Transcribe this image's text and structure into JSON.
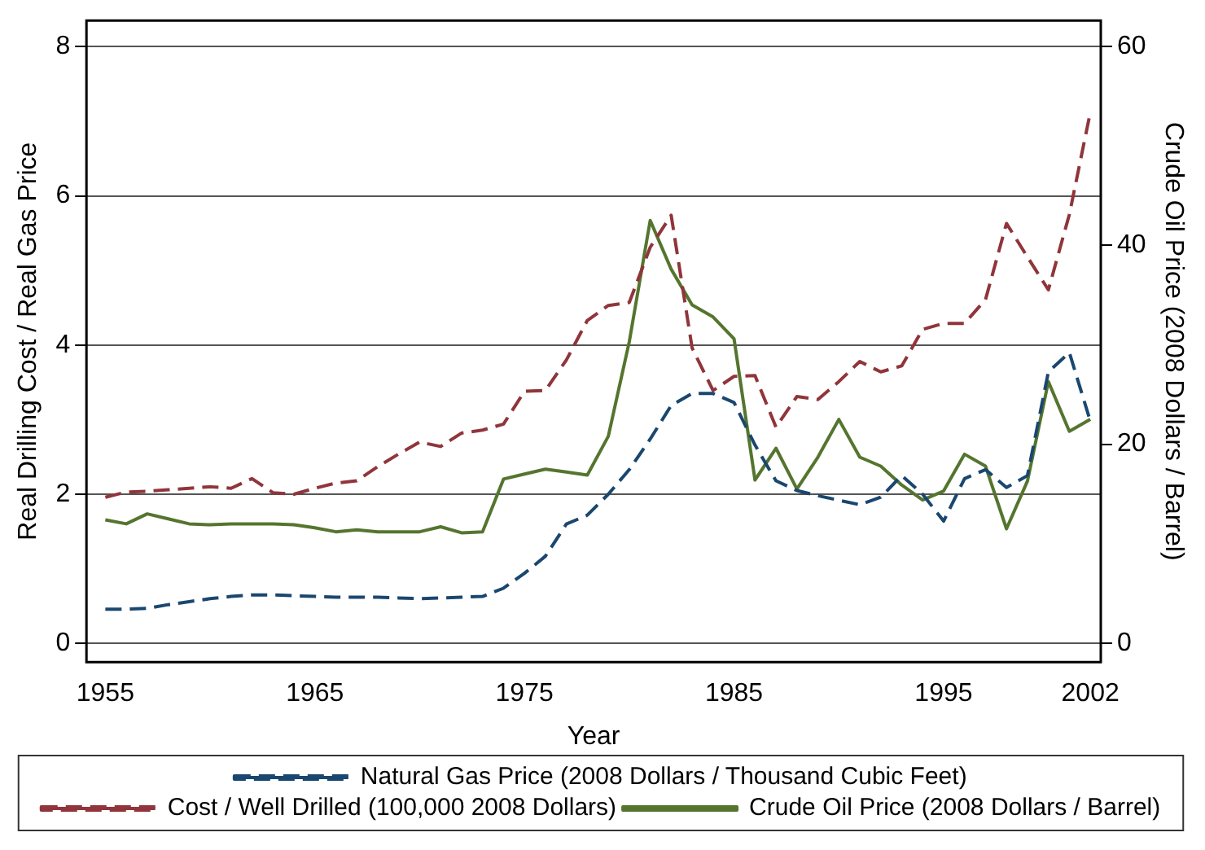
{
  "chart_data": {
    "type": "line",
    "xlabel": "Year",
    "ylabel": "Real Drilling Cost / Real Gas Price",
    "y2label": "Crude Oil Price (2008 Dollars / Barrel)",
    "x": [
      1955,
      1956,
      1957,
      1958,
      1959,
      1960,
      1961,
      1962,
      1963,
      1964,
      1965,
      1966,
      1967,
      1968,
      1969,
      1970,
      1971,
      1972,
      1973,
      1974,
      1975,
      1976,
      1977,
      1978,
      1979,
      1980,
      1981,
      1982,
      1983,
      1984,
      1985,
      1986,
      1987,
      1988,
      1989,
      1990,
      1991,
      1992,
      1993,
      1994,
      1995,
      1996,
      1997,
      1998,
      1999,
      2000,
      2001,
      2002
    ],
    "series": [
      {
        "name": "Natural Gas Price (2008 Dollars / Thousand Cubic Feet)",
        "color": "#1a476f",
        "line_style": "dashed",
        "values": [
          0.46,
          0.46,
          0.47,
          0.52,
          0.56,
          0.6,
          0.63,
          0.65,
          0.65,
          0.64,
          0.63,
          0.62,
          0.62,
          0.62,
          0.61,
          0.6,
          0.61,
          0.62,
          0.63,
          0.74,
          0.94,
          1.17,
          1.6,
          1.72,
          2.0,
          2.33,
          2.74,
          3.19,
          3.35,
          3.35,
          3.23,
          2.66,
          2.18,
          2.05,
          1.98,
          1.92,
          1.86,
          1.96,
          2.25,
          2.0,
          1.64,
          2.21,
          2.33,
          2.09,
          2.25,
          3.64,
          3.9,
          2.98
        ]
      },
      {
        "name": "Cost / Well Drilled (100,000 2008 Dollars)",
        "color": "#90353b",
        "line_style": "dashed",
        "values": [
          1.96,
          2.03,
          2.04,
          2.06,
          2.08,
          2.1,
          2.08,
          2.21,
          2.02,
          2.0,
          2.08,
          2.15,
          2.18,
          2.37,
          2.54,
          2.7,
          2.64,
          2.82,
          2.86,
          2.94,
          3.38,
          3.39,
          3.8,
          4.33,
          4.53,
          4.57,
          5.31,
          5.74,
          3.96,
          3.39,
          3.58,
          3.59,
          2.9,
          3.31,
          3.27,
          3.51,
          3.78,
          3.64,
          3.72,
          4.21,
          4.29,
          4.29,
          4.61,
          5.63,
          5.18,
          4.74,
          5.75,
          7.12
        ]
      },
      {
        "name": "Crude Oil Price (2008 Dollars / Barrel)",
        "color": "#55752f",
        "line_style": "solid",
        "axis": "y2",
        "values": [
          12.4,
          12.0,
          13.0,
          12.5,
          12.0,
          11.9,
          12.0,
          12.0,
          12.0,
          11.9,
          11.6,
          11.2,
          11.4,
          11.2,
          11.2,
          11.2,
          11.7,
          11.1,
          11.2,
          16.5,
          17.0,
          17.5,
          17.2,
          16.9,
          20.8,
          30.3,
          42.5,
          37.6,
          34.0,
          32.8,
          30.6,
          16.4,
          19.6,
          15.5,
          18.7,
          22.5,
          18.7,
          17.8,
          15.9,
          14.4,
          15.3,
          19.0,
          17.8,
          11.5,
          16.3,
          26.3,
          21.3,
          22.5
        ]
      }
    ],
    "xlim": [
      1954.1,
      2002.5
    ],
    "xticks": [
      1955,
      1965,
      1975,
      1985,
      1995,
      2002
    ],
    "ylim": [
      -0.25,
      8.35
    ],
    "yticks": [
      0,
      2,
      4,
      6,
      8
    ],
    "y2lim": [
      -1.9,
      62.6
    ],
    "y2ticks": [
      0,
      20,
      40,
      60
    ],
    "grid": "y",
    "legend": "bottom",
    "marker": "none"
  }
}
